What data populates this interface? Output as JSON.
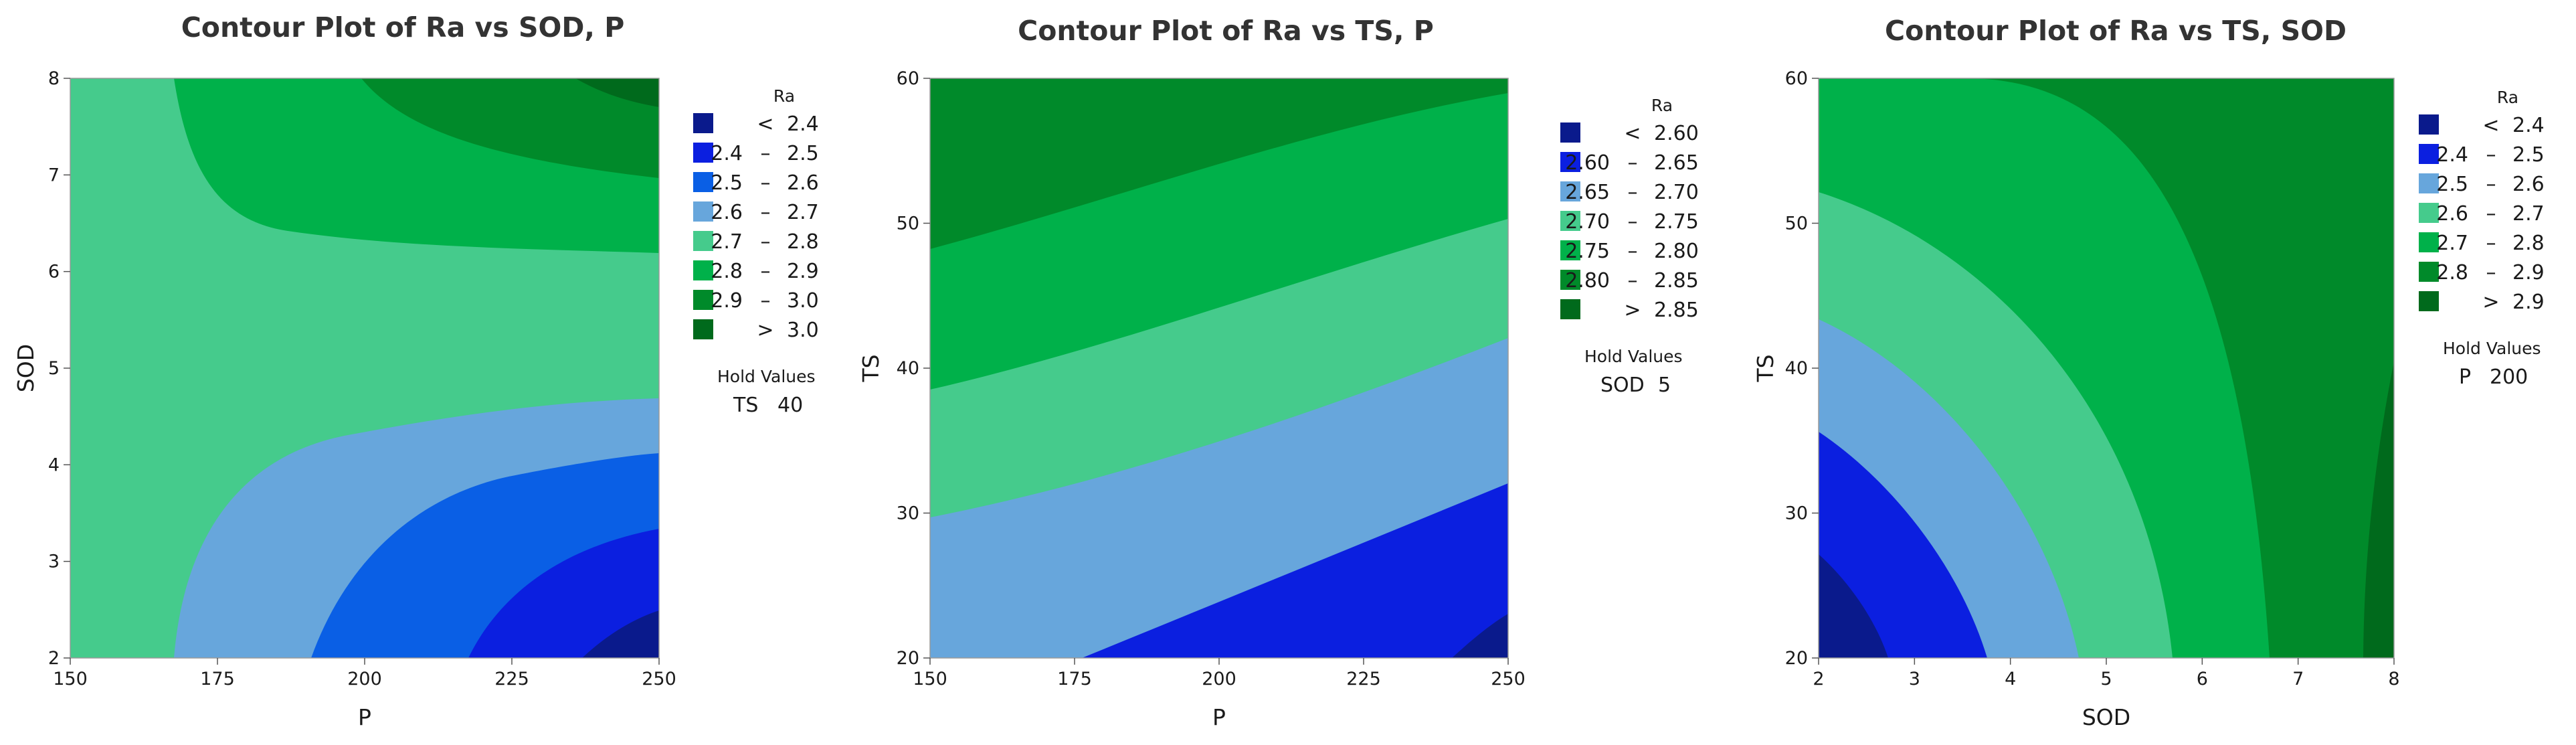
{
  "chart_data": [
    {
      "type": "contour",
      "title": "Contour Plot of Ra vs SOD, P",
      "xlabel": "P",
      "ylabel": "SOD",
      "xlim": [
        150,
        250
      ],
      "ylim": [
        2,
        8
      ],
      "xticks": [
        "150",
        "175",
        "200",
        "225",
        "250"
      ],
      "yticks": [
        "2",
        "3",
        "4",
        "5",
        "6",
        "7",
        "8"
      ],
      "legend": {
        "title": "Ra",
        "entries": [
          {
            "rel": "<",
            "lo": "",
            "hi": "2.4",
            "color": "#0a1a8c"
          },
          {
            "rel": "",
            "lo": "2.4",
            "hi": "2.5",
            "color": "#0b1fe0"
          },
          {
            "rel": "",
            "lo": "2.5",
            "hi": "2.6",
            "color": "#0a5fe5"
          },
          {
            "rel": "",
            "lo": "2.6",
            "hi": "2.7",
            "color": "#67a6dc"
          },
          {
            "rel": "",
            "lo": "2.7",
            "hi": "2.8",
            "color": "#45cb8c"
          },
          {
            "rel": "",
            "lo": "2.8",
            "hi": "2.9",
            "color": "#00b14a"
          },
          {
            "rel": "",
            "lo": "2.9",
            "hi": "3.0",
            "color": "#008a2a"
          },
          {
            "rel": ">",
            "lo": "",
            "hi": "3.0",
            "color": "#006a1c"
          }
        ]
      },
      "hold": {
        "title": "Hold Values",
        "name": "TS",
        "value": "40"
      }
    },
    {
      "type": "contour",
      "title": "Contour Plot of Ra vs TS, P",
      "xlabel": "P",
      "ylabel": "TS",
      "xlim": [
        150,
        250
      ],
      "ylim": [
        20,
        60
      ],
      "xticks": [
        "150",
        "175",
        "200",
        "225",
        "250"
      ],
      "yticks": [
        "20",
        "30",
        "40",
        "50",
        "60"
      ],
      "legend": {
        "title": "Ra",
        "entries": [
          {
            "rel": "<",
            "lo": "",
            "hi": "2.60",
            "color": "#0a1a8c"
          },
          {
            "rel": "",
            "lo": "2.60",
            "hi": "2.65",
            "color": "#0b1fe0"
          },
          {
            "rel": "",
            "lo": "2.65",
            "hi": "2.70",
            "color": "#67a6dc"
          },
          {
            "rel": "",
            "lo": "2.70",
            "hi": "2.75",
            "color": "#45cb8c"
          },
          {
            "rel": "",
            "lo": "2.75",
            "hi": "2.80",
            "color": "#00b14a"
          },
          {
            "rel": "",
            "lo": "2.80",
            "hi": "2.85",
            "color": "#008a2a"
          },
          {
            "rel": ">",
            "lo": "",
            "hi": "2.85",
            "color": "#006a1c"
          }
        ]
      },
      "hold": {
        "title": "Hold Values",
        "name": "SOD",
        "value": "5"
      }
    },
    {
      "type": "contour",
      "title": "Contour Plot of Ra vs TS, SOD",
      "xlabel": "SOD",
      "ylabel": "TS",
      "xlim": [
        2,
        8
      ],
      "ylim": [
        20,
        60
      ],
      "xticks": [
        "2",
        "3",
        "4",
        "5",
        "6",
        "7",
        "8"
      ],
      "yticks": [
        "20",
        "30",
        "40",
        "50",
        "60"
      ],
      "legend": {
        "title": "Ra",
        "entries": [
          {
            "rel": "<",
            "lo": "",
            "hi": "2.4",
            "color": "#0a1a8c"
          },
          {
            "rel": "",
            "lo": "2.4",
            "hi": "2.5",
            "color": "#0b1fe0"
          },
          {
            "rel": "",
            "lo": "2.5",
            "hi": "2.6",
            "color": "#67a6dc"
          },
          {
            "rel": "",
            "lo": "2.6",
            "hi": "2.7",
            "color": "#45cb8c"
          },
          {
            "rel": "",
            "lo": "2.7",
            "hi": "2.8",
            "color": "#00b14a"
          },
          {
            "rel": "",
            "lo": "2.8",
            "hi": "2.9",
            "color": "#008a2a"
          },
          {
            "rel": ">",
            "lo": "",
            "hi": "2.9",
            "color": "#006a1c"
          }
        ]
      },
      "hold": {
        "title": "Hold Values",
        "name": "P",
        "value": "200"
      }
    }
  ]
}
